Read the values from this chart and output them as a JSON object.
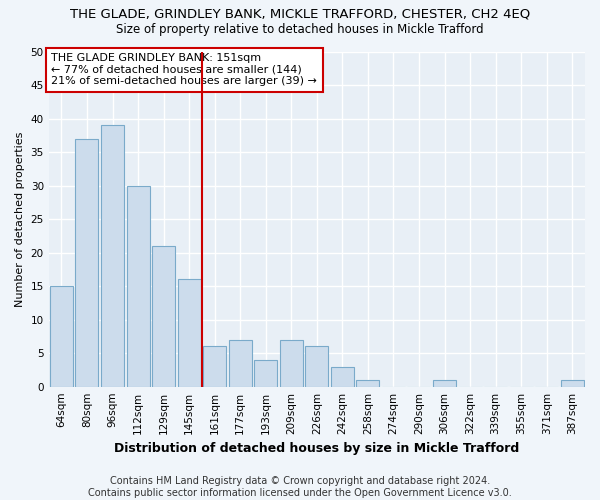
{
  "title": "THE GLADE, GRINDLEY BANK, MICKLE TRAFFORD, CHESTER, CH2 4EQ",
  "subtitle": "Size of property relative to detached houses in Mickle Trafford",
  "xlabel": "Distribution of detached houses by size in Mickle Trafford",
  "ylabel": "Number of detached properties",
  "categories": [
    "64sqm",
    "80sqm",
    "96sqm",
    "112sqm",
    "129sqm",
    "145sqm",
    "161sqm",
    "177sqm",
    "193sqm",
    "209sqm",
    "226sqm",
    "242sqm",
    "258sqm",
    "274sqm",
    "290sqm",
    "306sqm",
    "322sqm",
    "339sqm",
    "355sqm",
    "371sqm",
    "387sqm"
  ],
  "values": [
    15,
    37,
    39,
    30,
    21,
    16,
    6,
    7,
    4,
    7,
    6,
    3,
    1,
    0,
    0,
    1,
    0,
    0,
    0,
    0,
    1
  ],
  "bar_color": "#ccdcec",
  "bar_edge_color": "#7aaaca",
  "vline_x": 5.5,
  "vline_color": "#cc0000",
  "annotation_text": "THE GLADE GRINDLEY BANK: 151sqm\n← 77% of detached houses are smaller (144)\n21% of semi-detached houses are larger (39) →",
  "annotation_box_color": "#ffffff",
  "annotation_box_edge": "#cc0000",
  "ylim": [
    0,
    50
  ],
  "yticks": [
    0,
    5,
    10,
    15,
    20,
    25,
    30,
    35,
    40,
    45,
    50
  ],
  "footnote": "Contains HM Land Registry data © Crown copyright and database right 2024.\nContains public sector information licensed under the Open Government Licence v3.0.",
  "fig_facecolor": "#f0f5fa",
  "plot_facecolor": "#e8eff6",
  "grid_color": "#ffffff",
  "title_fontsize": 9.5,
  "subtitle_fontsize": 8.5,
  "xlabel_fontsize": 9,
  "ylabel_fontsize": 8,
  "tick_fontsize": 7.5,
  "annotation_fontsize": 8,
  "footnote_fontsize": 7
}
